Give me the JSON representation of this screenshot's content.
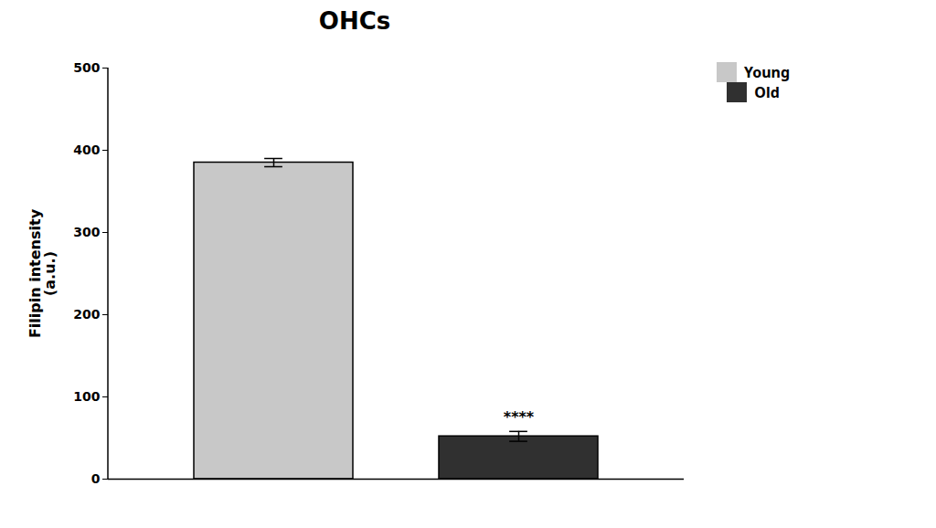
{
  "chart_data": {
    "type": "bar",
    "title": "OHCs",
    "ylabel": "Filipin intensity\n(a.u.)",
    "categories": [
      "Young",
      "Old"
    ],
    "values": [
      385,
      52
    ],
    "errors": [
      5,
      6
    ],
    "colors": [
      "#c8c8c8",
      "#303030"
    ],
    "ylim": [
      0,
      500
    ],
    "yticks": [
      0,
      100,
      200,
      300,
      400,
      500
    ],
    "annotations": [
      {
        "text": "****",
        "category": "Old"
      }
    ],
    "legend": "upper right",
    "tick_labels": "y"
  }
}
